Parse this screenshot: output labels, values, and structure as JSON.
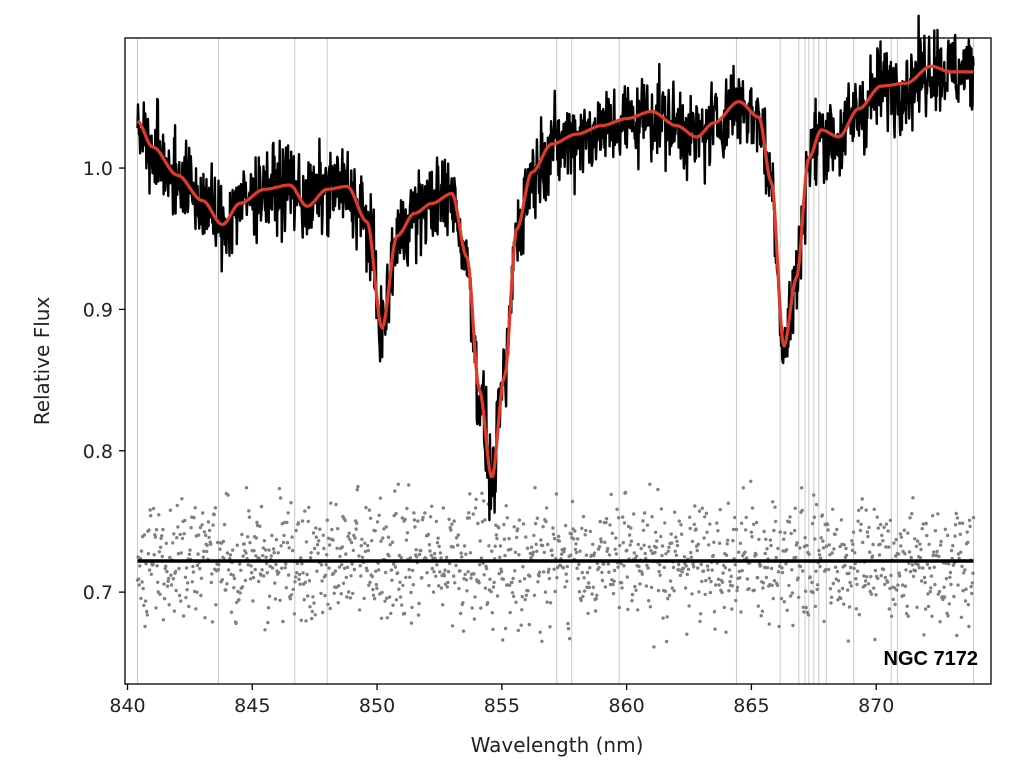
{
  "chart_data": {
    "type": "line",
    "title": "",
    "xlabel": "Wavelength (nm)",
    "ylabel": "Relative Flux",
    "xlim": [
      839.9,
      874.6
    ],
    "ylim": [
      0.635,
      1.092
    ],
    "x_ticks": [
      840,
      845,
      850,
      855,
      860,
      865,
      870
    ],
    "y_ticks": [
      0.7,
      0.8,
      0.9,
      1.0
    ],
    "grid": false,
    "legend": "none",
    "annotation": "NGC 7172",
    "colors": {
      "spectrum": "#000000",
      "model": "#e03a2a",
      "residuals": "#808080",
      "baseline": "#000000",
      "masked_lines": "#c8c8c8"
    },
    "series": [
      {
        "kind": "observed_spectrum",
        "x": [
          840.4,
          841.0,
          842.0,
          843.0,
          843.8,
          844.5,
          845.5,
          846.5,
          847.2,
          848.0,
          848.8,
          849.6,
          850.2,
          850.8,
          851.5,
          852.2,
          853.0,
          853.6,
          854.1,
          854.6,
          855.1,
          855.6,
          856.2,
          857.0,
          858.0,
          859.0,
          860.0,
          861.0,
          862.0,
          862.8,
          863.5,
          864.5,
          865.3,
          865.8,
          866.3,
          866.8,
          867.3,
          867.8,
          868.5,
          869.3,
          870.2,
          871.2,
          872.2,
          873.0,
          873.9
        ],
        "y": [
          1.03,
          1.01,
          0.995,
          0.975,
          0.96,
          0.975,
          0.985,
          0.987,
          0.975,
          0.985,
          0.985,
          0.96,
          0.885,
          0.95,
          0.968,
          0.975,
          0.98,
          0.935,
          0.84,
          0.778,
          0.85,
          0.955,
          0.995,
          1.015,
          1.022,
          1.028,
          1.033,
          1.038,
          1.03,
          1.022,
          1.03,
          1.046,
          1.035,
          0.99,
          0.872,
          0.92,
          1.005,
          1.025,
          1.02,
          1.04,
          1.057,
          1.058,
          1.071,
          1.068,
          1.068
        ],
        "noise_amplitude": 0.025
      },
      {
        "kind": "model_fit",
        "x": [
          840.4,
          841.0,
          842.0,
          843.0,
          843.8,
          844.5,
          845.5,
          846.5,
          847.2,
          848.0,
          848.8,
          849.6,
          850.2,
          850.8,
          851.5,
          852.2,
          853.0,
          853.6,
          854.1,
          854.6,
          855.1,
          855.6,
          856.2,
          857.0,
          858.0,
          859.0,
          860.0,
          861.0,
          862.0,
          862.8,
          863.5,
          864.5,
          865.3,
          865.8,
          866.3,
          866.8,
          867.3,
          867.8,
          868.5,
          869.3,
          870.2,
          871.2,
          872.2,
          873.0,
          873.9
        ],
        "y": [
          1.033,
          1.015,
          0.995,
          0.977,
          0.96,
          0.975,
          0.985,
          0.988,
          0.973,
          0.985,
          0.987,
          0.962,
          0.887,
          0.952,
          0.968,
          0.975,
          0.982,
          0.937,
          0.843,
          0.781,
          0.852,
          0.957,
          0.997,
          1.017,
          1.024,
          1.03,
          1.035,
          1.04,
          1.03,
          1.022,
          1.032,
          1.047,
          1.036,
          0.99,
          0.874,
          0.922,
          1.007,
          1.027,
          1.022,
          1.042,
          1.058,
          1.06,
          1.072,
          1.068,
          1.068
        ]
      },
      {
        "kind": "residuals",
        "x_range": [
          840.4,
          873.9
        ],
        "center": 0.722,
        "spread": 0.022
      },
      {
        "kind": "residual_baseline",
        "x": [
          840.4,
          873.9
        ],
        "y": [
          0.722,
          0.722
        ]
      }
    ],
    "masked_wavelengths": [
      840.4,
      843.65,
      846.7,
      848.0,
      857.2,
      857.8,
      859.7,
      864.4,
      866.15,
      866.9,
      867.15,
      867.3,
      867.5,
      867.7,
      868.0,
      869.1,
      870.6,
      870.85,
      873.9
    ]
  }
}
